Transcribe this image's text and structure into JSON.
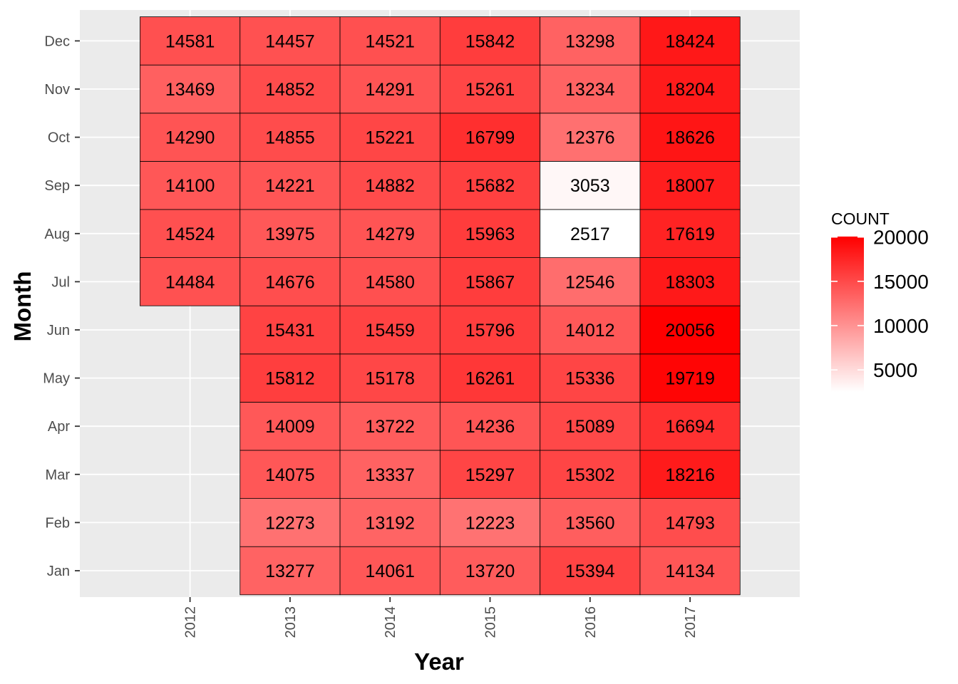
{
  "chart_data": {
    "type": "heatmap",
    "xlabel": "Year",
    "ylabel": "Month",
    "x_categories": [
      "2012",
      "2013",
      "2014",
      "2015",
      "2016",
      "2017"
    ],
    "y_categories": [
      "Jan",
      "Feb",
      "Mar",
      "Apr",
      "May",
      "Jun",
      "Jul",
      "Aug",
      "Sep",
      "Oct",
      "Nov",
      "Dec"
    ],
    "cells": [
      {
        "year": "2012",
        "month": "Jul",
        "value": 14484
      },
      {
        "year": "2012",
        "month": "Aug",
        "value": 14524
      },
      {
        "year": "2012",
        "month": "Sep",
        "value": 14100
      },
      {
        "year": "2012",
        "month": "Oct",
        "value": 14290
      },
      {
        "year": "2012",
        "month": "Nov",
        "value": 13469
      },
      {
        "year": "2012",
        "month": "Dec",
        "value": 14581
      },
      {
        "year": "2013",
        "month": "Jan",
        "value": 13277
      },
      {
        "year": "2013",
        "month": "Feb",
        "value": 12273
      },
      {
        "year": "2013",
        "month": "Mar",
        "value": 14075
      },
      {
        "year": "2013",
        "month": "Apr",
        "value": 14009
      },
      {
        "year": "2013",
        "month": "May",
        "value": 15812
      },
      {
        "year": "2013",
        "month": "Jun",
        "value": 15431
      },
      {
        "year": "2013",
        "month": "Jul",
        "value": 14676
      },
      {
        "year": "2013",
        "month": "Aug",
        "value": 13975
      },
      {
        "year": "2013",
        "month": "Sep",
        "value": 14221
      },
      {
        "year": "2013",
        "month": "Oct",
        "value": 14855
      },
      {
        "year": "2013",
        "month": "Nov",
        "value": 14852
      },
      {
        "year": "2013",
        "month": "Dec",
        "value": 14457
      },
      {
        "year": "2014",
        "month": "Jan",
        "value": 14061
      },
      {
        "year": "2014",
        "month": "Feb",
        "value": 13192
      },
      {
        "year": "2014",
        "month": "Mar",
        "value": 13337
      },
      {
        "year": "2014",
        "month": "Apr",
        "value": 13722
      },
      {
        "year": "2014",
        "month": "May",
        "value": 15178
      },
      {
        "year": "2014",
        "month": "Jun",
        "value": 15459
      },
      {
        "year": "2014",
        "month": "Jul",
        "value": 14580
      },
      {
        "year": "2014",
        "month": "Aug",
        "value": 14279
      },
      {
        "year": "2014",
        "month": "Sep",
        "value": 14882
      },
      {
        "year": "2014",
        "month": "Oct",
        "value": 15221
      },
      {
        "year": "2014",
        "month": "Nov",
        "value": 14291
      },
      {
        "year": "2014",
        "month": "Dec",
        "value": 14521
      },
      {
        "year": "2015",
        "month": "Jan",
        "value": 13720
      },
      {
        "year": "2015",
        "month": "Feb",
        "value": 12223
      },
      {
        "year": "2015",
        "month": "Mar",
        "value": 15297
      },
      {
        "year": "2015",
        "month": "Apr",
        "value": 14236
      },
      {
        "year": "2015",
        "month": "May",
        "value": 16261
      },
      {
        "year": "2015",
        "month": "Jun",
        "value": 15796
      },
      {
        "year": "2015",
        "month": "Jul",
        "value": 15867
      },
      {
        "year": "2015",
        "month": "Aug",
        "value": 15963
      },
      {
        "year": "2015",
        "month": "Sep",
        "value": 15682
      },
      {
        "year": "2015",
        "month": "Oct",
        "value": 16799
      },
      {
        "year": "2015",
        "month": "Nov",
        "value": 15261
      },
      {
        "year": "2015",
        "month": "Dec",
        "value": 15842
      },
      {
        "year": "2016",
        "month": "Jan",
        "value": 15394
      },
      {
        "year": "2016",
        "month": "Feb",
        "value": 13560
      },
      {
        "year": "2016",
        "month": "Mar",
        "value": 15302
      },
      {
        "year": "2016",
        "month": "Apr",
        "value": 15089
      },
      {
        "year": "2016",
        "month": "May",
        "value": 15336
      },
      {
        "year": "2016",
        "month": "Jun",
        "value": 14012
      },
      {
        "year": "2016",
        "month": "Jul",
        "value": 12546
      },
      {
        "year": "2016",
        "month": "Aug",
        "value": 2517
      },
      {
        "year": "2016",
        "month": "Sep",
        "value": 3053
      },
      {
        "year": "2016",
        "month": "Oct",
        "value": 12376
      },
      {
        "year": "2016",
        "month": "Nov",
        "value": 13234
      },
      {
        "year": "2016",
        "month": "Dec",
        "value": 13298
      },
      {
        "year": "2017",
        "month": "Jan",
        "value": 14134
      },
      {
        "year": "2017",
        "month": "Feb",
        "value": 14793
      },
      {
        "year": "2017",
        "month": "Mar",
        "value": 18216
      },
      {
        "year": "2017",
        "month": "Apr",
        "value": 16694
      },
      {
        "year": "2017",
        "month": "May",
        "value": 19719
      },
      {
        "year": "2017",
        "month": "Jun",
        "value": 20056
      },
      {
        "year": "2017",
        "month": "Jul",
        "value": 18303
      },
      {
        "year": "2017",
        "month": "Aug",
        "value": 17619
      },
      {
        "year": "2017",
        "month": "Sep",
        "value": 18007
      },
      {
        "year": "2017",
        "month": "Oct",
        "value": 18626
      },
      {
        "year": "2017",
        "month": "Nov",
        "value": 18204
      },
      {
        "year": "2017",
        "month": "Dec",
        "value": 18424
      }
    ],
    "legend": {
      "title": "COUNT",
      "ticks": [
        "20000",
        "15000",
        "10000",
        "5000"
      ],
      "tick_values": [
        20000,
        15000,
        10000,
        5000
      ],
      "placement": "right",
      "low_color": "#ffffff",
      "high_color": "#ff0000"
    },
    "value_range": [
      2517,
      20056
    ],
    "panel_color": "#ebebeb",
    "grid_color": "#ffffff",
    "cell_border_color": "#000000",
    "grid": true
  }
}
